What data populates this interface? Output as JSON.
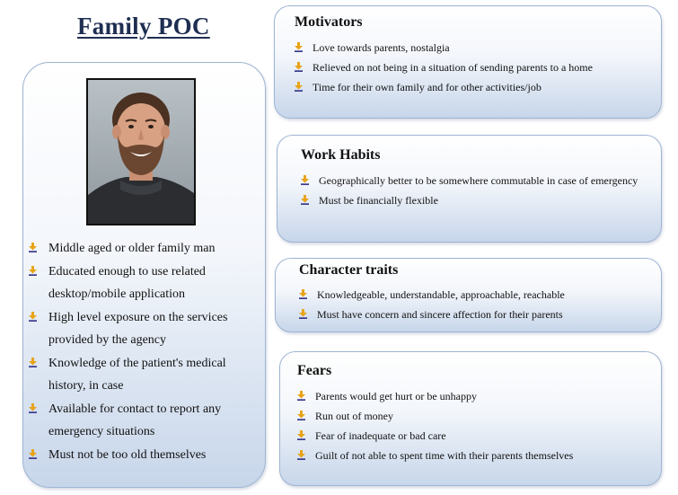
{
  "title": "Family POC",
  "photo": {
    "icon": "person-photo"
  },
  "profile_points": [
    "Middle aged or older family man",
    "Educated enough to use related desktop/mobile application",
    "High level exposure on the services provided by the agency",
    "Knowledge of the patient's medical history, in case",
    "Available for contact to report any emergency situations",
    "Must not be too old themselves"
  ],
  "sections": [
    {
      "heading": "Motivators",
      "items": [
        "Love towards parents, nostalgia",
        "Relieved on not being in a situation of sending parents to a home",
        "Time for their own family and for other activities/job"
      ]
    },
    {
      "heading": "Work Habits",
      "items": [
        "Geographically better to be somewhere commutable in case of emergency",
        "Must be financially flexible"
      ]
    },
    {
      "heading": "Character traits",
      "items": [
        "Knowledgeable, understandable, approachable, reachable",
        "Must have concern and sincere affection for their parents"
      ]
    },
    {
      "heading": "Fears",
      "items": [
        "Parents would get hurt or be unhappy",
        "Run out of money",
        "Fear of inadequate or bad care",
        "Guilt of not able to spent time with their parents themselves"
      ]
    }
  ],
  "colors": {
    "title": "#1f2f52",
    "panel_border": "#9fb4d3",
    "panel_gradient_bottom": "#c7d6ea",
    "bullet_arrow": "#e8a317",
    "bullet_base": "#3a3a8c"
  }
}
